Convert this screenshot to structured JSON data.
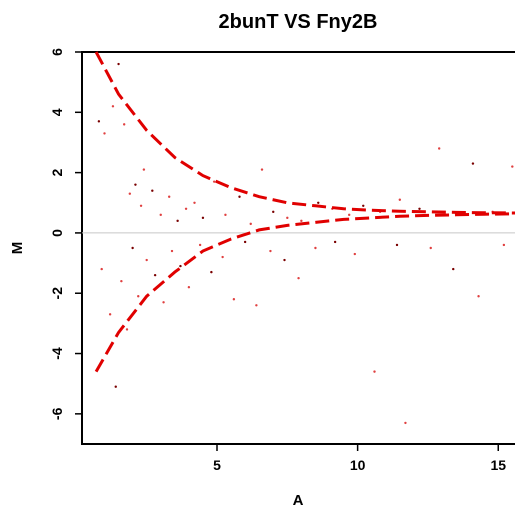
{
  "chart_data": {
    "type": "scatter",
    "title": "2bunT VS Fny2B",
    "xlabel": "A",
    "ylabel": "M",
    "xlim": [
      0.2,
      16.2
    ],
    "ylim": [
      -7,
      6
    ],
    "x_ticks": [
      "5",
      "10",
      "15"
    ],
    "y_ticks": [
      "6",
      "4",
      "2",
      "0",
      "-2",
      "-4",
      "-6"
    ],
    "reference_line_y": 0,
    "series": [
      {
        "values": [
          [
            0.8,
            3.7
          ],
          [
            1.0,
            3.3
          ],
          [
            1.3,
            4.2
          ],
          [
            1.5,
            5.6
          ],
          [
            1.7,
            3.6
          ],
          [
            1.9,
            1.3
          ],
          [
            2.1,
            1.6
          ],
          [
            2.3,
            0.9
          ],
          [
            2.4,
            2.1
          ],
          [
            2.7,
            1.4
          ],
          [
            3.0,
            0.6
          ],
          [
            3.3,
            1.2
          ],
          [
            3.6,
            0.4
          ],
          [
            3.9,
            0.8
          ],
          [
            4.2,
            1.0
          ],
          [
            4.5,
            0.5
          ],
          [
            4.9,
            1.7
          ],
          [
            5.3,
            0.6
          ],
          [
            5.8,
            1.2
          ],
          [
            6.2,
            0.3
          ],
          [
            6.6,
            2.1
          ],
          [
            7.0,
            0.7
          ],
          [
            7.5,
            0.5
          ],
          [
            8.0,
            0.4
          ],
          [
            8.6,
            1.0
          ],
          [
            9.1,
            0.8
          ],
          [
            9.7,
            0.6
          ],
          [
            10.2,
            0.9
          ],
          [
            10.8,
            0.7
          ],
          [
            11.5,
            1.1
          ],
          [
            12.2,
            0.8
          ],
          [
            12.9,
            2.8
          ],
          [
            13.5,
            0.6
          ],
          [
            14.1,
            2.3
          ],
          [
            14.8,
            0.7
          ],
          [
            15.5,
            2.2
          ],
          [
            15.9,
            0.6
          ],
          [
            0.9,
            -1.2
          ],
          [
            1.2,
            -2.7
          ],
          [
            1.4,
            -5.1
          ],
          [
            1.6,
            -1.6
          ],
          [
            1.8,
            -3.2
          ],
          [
            2.0,
            -0.5
          ],
          [
            2.2,
            -2.1
          ],
          [
            2.5,
            -0.9
          ],
          [
            2.8,
            -1.4
          ],
          [
            3.1,
            -2.3
          ],
          [
            3.4,
            -0.6
          ],
          [
            3.7,
            -1.1
          ],
          [
            4.0,
            -1.8
          ],
          [
            4.4,
            -0.4
          ],
          [
            4.8,
            -1.3
          ],
          [
            5.2,
            -0.8
          ],
          [
            5.6,
            -2.2
          ],
          [
            6.0,
            -0.3
          ],
          [
            6.4,
            -2.4
          ],
          [
            6.9,
            -0.6
          ],
          [
            7.4,
            -0.9
          ],
          [
            7.9,
            -1.5
          ],
          [
            8.5,
            -0.5
          ],
          [
            9.2,
            -0.3
          ],
          [
            9.9,
            -0.7
          ],
          [
            10.6,
            -4.6
          ],
          [
            11.4,
            -0.4
          ],
          [
            11.7,
            -6.3
          ],
          [
            12.6,
            -0.5
          ],
          [
            13.4,
            -1.2
          ],
          [
            14.3,
            -2.1
          ],
          [
            15.2,
            -0.4
          ]
        ]
      },
      {
        "type": "line",
        "x": [
          0.7,
          1.5,
          2.5,
          3.5,
          4.5,
          5.5,
          6.5,
          7.5,
          8.5,
          9.5,
          10.5,
          11.5,
          12.5,
          13.5,
          14.5,
          15.5,
          16.2
        ],
        "values": [
          6.0,
          4.6,
          3.4,
          2.5,
          1.9,
          1.5,
          1.2,
          1.0,
          0.9,
          0.8,
          0.75,
          0.72,
          0.7,
          0.68,
          0.67,
          0.66,
          0.65
        ]
      },
      {
        "type": "line",
        "x": [
          0.7,
          1.5,
          2.5,
          3.5,
          4.5,
          5.5,
          6.5,
          7.5,
          8.5,
          9.5,
          10.5,
          11.5,
          12.5,
          13.5,
          14.5,
          15.5,
          16.2
        ],
        "values": [
          -4.6,
          -3.3,
          -2.1,
          -1.3,
          -0.6,
          -0.2,
          0.1,
          0.25,
          0.35,
          0.45,
          0.5,
          0.55,
          0.58,
          0.6,
          0.62,
          0.63,
          0.64
        ]
      }
    ]
  }
}
